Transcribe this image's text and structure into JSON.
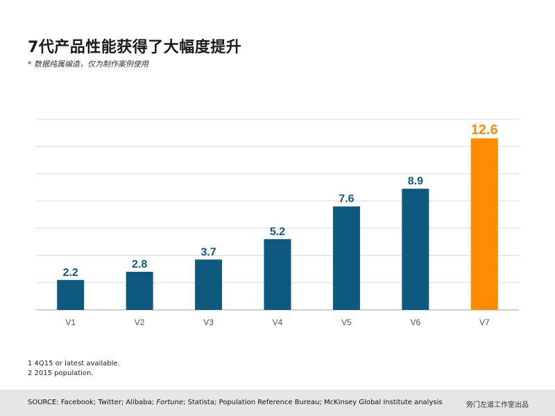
{
  "slide": {
    "title": "7代产品性能获得了大幅度提升",
    "subtitle": "* 数据纯属编造，仅为制作案例使用",
    "footnotes": [
      "1 4Q15 or latest available.",
      "2 2015 population."
    ],
    "source_prefix": "SOURCE: Facebook; Twitter; Alibaba; ",
    "source_italic": "Fortune",
    "source_suffix": "; Statista; Population Reference Bureau; McKinsey Global Institute analysis",
    "credit": "旁门左道工作室出品"
  },
  "colors": {
    "bar_default": "#0d5a7e",
    "bar_highlight": "#ff8c00",
    "label_default": "#0d5a7e",
    "label_highlight": "#ff8c00",
    "grid": "#d9d9d9",
    "axis": "#bfbfbf",
    "tick_text": "#555555"
  },
  "chart_data": {
    "type": "bar",
    "title": "7代产品性能获得了大幅度提升",
    "xlabel": "",
    "ylabel": "",
    "categories": [
      "V1",
      "V2",
      "V3",
      "V4",
      "V5",
      "V6",
      "V7"
    ],
    "values": [
      2.2,
      2.8,
      3.7,
      5.2,
      7.6,
      8.9,
      12.6
    ],
    "value_labels": [
      "2.2",
      "2.8",
      "3.7",
      "5.2",
      "7.6",
      "8.9",
      "12.6"
    ],
    "highlight_index": 6,
    "ylim": [
      0,
      14
    ],
    "y_grid_step": 2,
    "grid": true,
    "legend": "none"
  }
}
